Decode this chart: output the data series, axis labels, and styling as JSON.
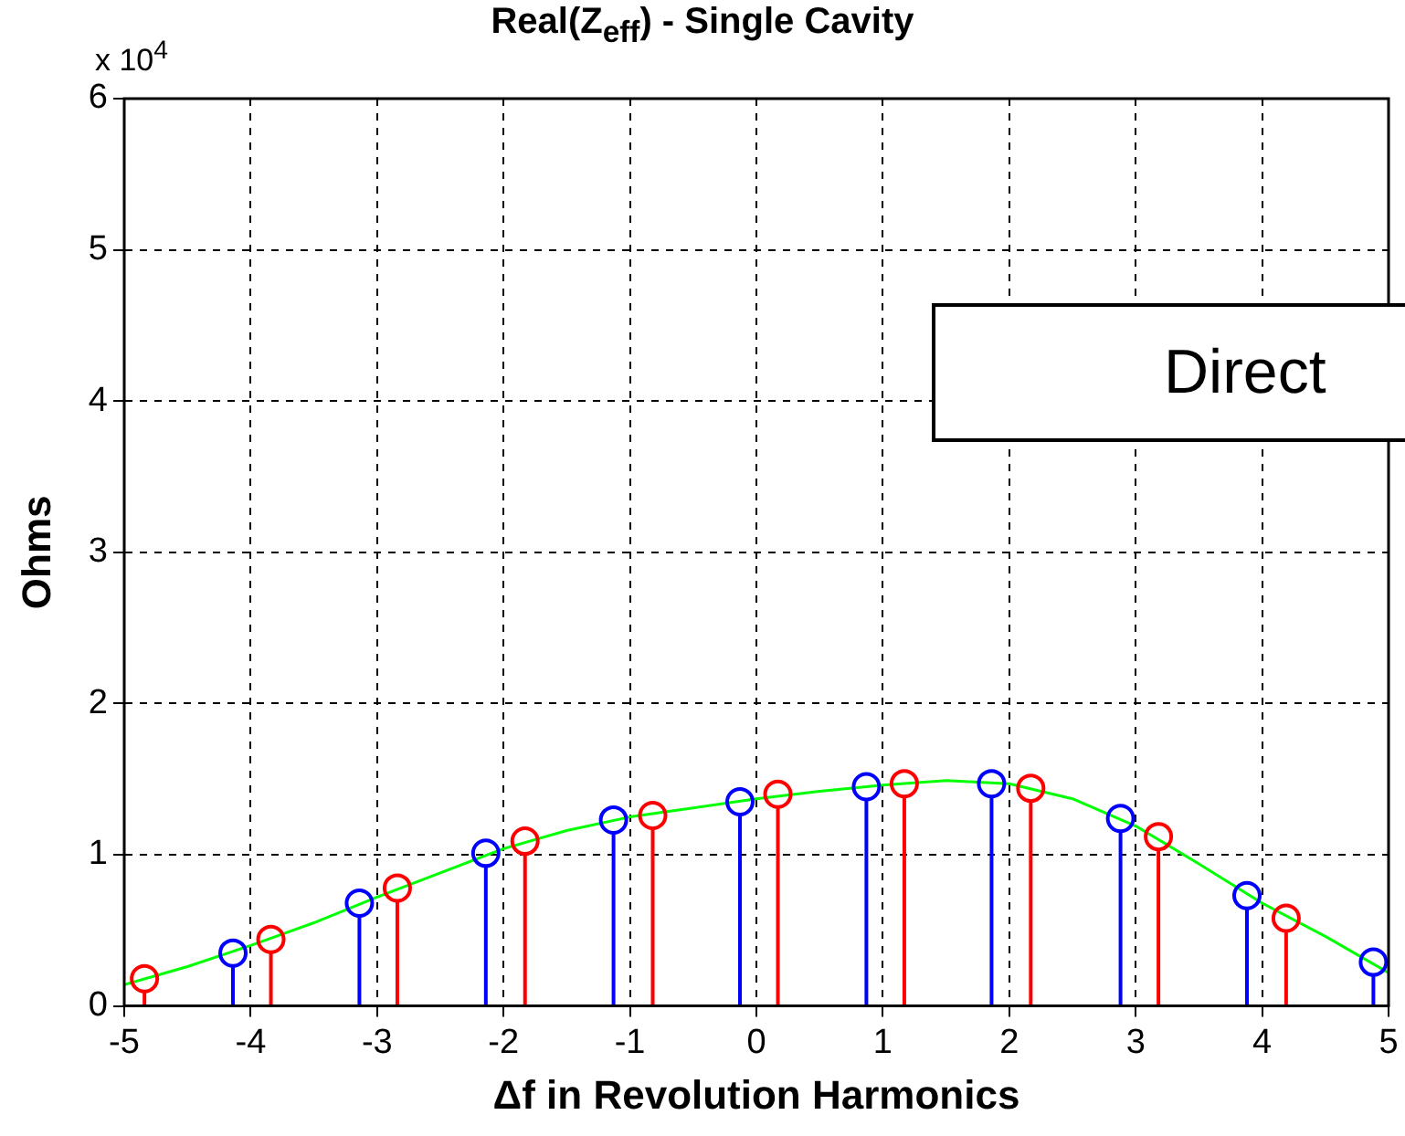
{
  "chart_data": {
    "type": "lollipop",
    "title": "Real(Z$_{eff}$) - Single Cavity",
    "xlabel": "Δf in Revolution Harmonics",
    "ylabel": "Ohms",
    "annotations": [
      "x 10$^{4}$",
      "Direct"
    ],
    "xlim": [
      -5,
      5
    ],
    "xticks": [
      -5,
      -4,
      -3,
      -2,
      -1,
      0,
      1,
      2,
      3,
      4,
      5
    ],
    "ylim": [
      0,
      6
    ],
    "yticks": [
      0,
      1,
      2,
      3,
      4,
      5,
      6
    ],
    "grid": true,
    "legend": false,
    "marker": "circle",
    "series": [
      {
        "type": "lollipop",
        "color": "#0000ff",
        "x": [
          -4.14,
          -3.14,
          -2.14,
          -1.13,
          -0.13,
          0.87,
          1.86,
          2.88,
          3.88,
          4.88
        ],
        "values": [
          0.35,
          0.68,
          1.01,
          1.23,
          1.35,
          1.45,
          1.47,
          1.24,
          0.73,
          0.29
        ]
      },
      {
        "type": "lollipop",
        "color": "#ff0000",
        "x": [
          -4.84,
          -3.84,
          -2.84,
          -1.83,
          -0.82,
          0.17,
          1.17,
          2.17,
          3.18,
          4.19
        ],
        "values": [
          0.18,
          0.44,
          0.78,
          1.09,
          1.26,
          1.4,
          1.47,
          1.44,
          1.12,
          0.58
        ]
      },
      {
        "type": "line",
        "color": "#00ff00",
        "marker": "none",
        "x": [
          -5,
          -4.5,
          -4,
          -3.5,
          -3,
          -2.5,
          -2,
          -1.5,
          -1,
          -0.5,
          0,
          0.5,
          1,
          1.5,
          2,
          2.5,
          3,
          3.5,
          4,
          4.5,
          5
        ],
        "values": [
          0.14,
          0.26,
          0.4,
          0.55,
          0.72,
          0.88,
          1.04,
          1.16,
          1.25,
          1.31,
          1.37,
          1.42,
          1.46,
          1.49,
          1.47,
          1.37,
          1.19,
          0.94,
          0.68,
          0.46,
          0.22
        ]
      }
    ]
  }
}
